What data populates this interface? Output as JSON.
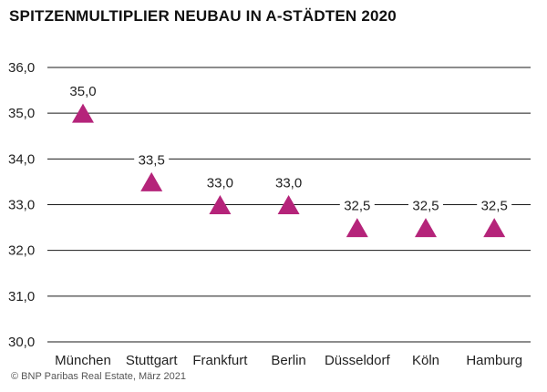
{
  "chart_data": {
    "type": "scatter",
    "title": "SPITZENMULTIPLIER NEUBAU IN A-STÄDTEN 2020",
    "categories": [
      "München",
      "Stuttgart",
      "Frankfurt",
      "Berlin",
      "Düsseldorf",
      "Köln",
      "Hamburg"
    ],
    "values": [
      35.0,
      33.5,
      33.0,
      33.0,
      32.5,
      32.5,
      32.5
    ],
    "value_labels": [
      "35,0",
      "33,5",
      "33,0",
      "33,0",
      "32,5",
      "32,5",
      "32,5"
    ],
    "yticks": [
      30,
      31,
      32,
      33,
      34,
      35,
      36
    ],
    "ytick_labels": [
      "30,0",
      "31,0",
      "32,0",
      "33,0",
      "34,0",
      "35,0",
      "36,0"
    ],
    "ylim": [
      30,
      36
    ],
    "xlabel": "",
    "ylabel": "",
    "grid": true,
    "marker": "triangle",
    "marker_color": "#b5247a",
    "grid_color": "#1a1a1a"
  },
  "footnote": "© BNP Paribas Real Estate, März 2021"
}
